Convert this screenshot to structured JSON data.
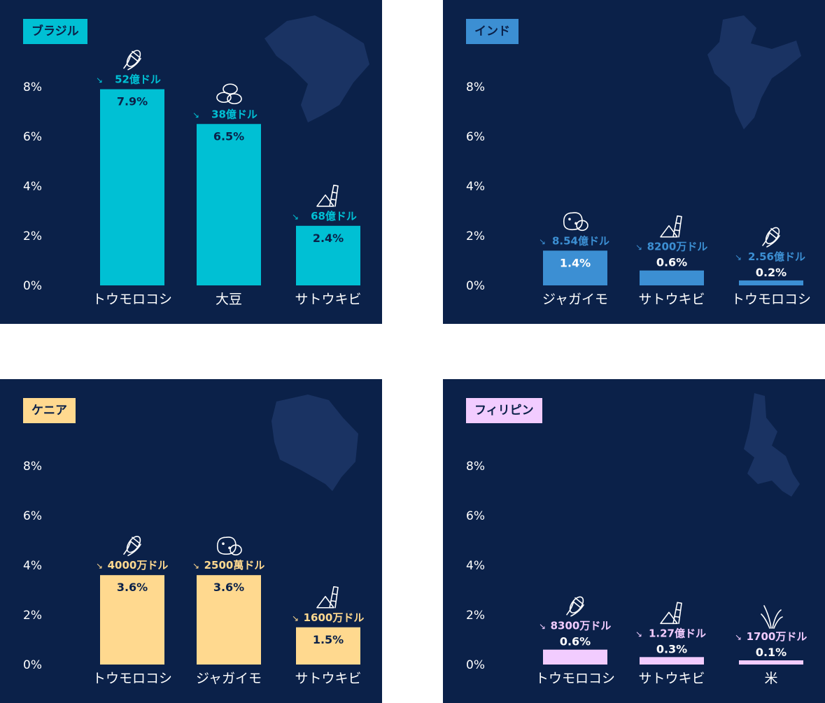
{
  "chart_data": [
    {
      "type": "bar",
      "title": "ブラジル",
      "color": "#00c0d4",
      "ylim": [
        0,
        9
      ],
      "yticks": [
        "0%",
        "2%",
        "4%",
        "6%",
        "8%"
      ],
      "categories": [
        "トウモロコシ",
        "大豆",
        "サトウキビ"
      ],
      "values": [
        7.9,
        6.5,
        2.4
      ],
      "value_labels": [
        "7.9%",
        "6.5%",
        "2.4%"
      ],
      "amounts": [
        "52億ドル",
        "38億ドル",
        "68億ドル"
      ],
      "icons": [
        "corn-icon",
        "bean-icon",
        "sugarcane-icon"
      ]
    },
    {
      "type": "bar",
      "title": "インド",
      "color": "#3c8fd3",
      "ylim": [
        0,
        9
      ],
      "yticks": [
        "0%",
        "2%",
        "4%",
        "6%",
        "8%"
      ],
      "categories": [
        "ジャガイモ",
        "サトウキビ",
        "トウモロコシ"
      ],
      "values": [
        1.4,
        0.6,
        0.2
      ],
      "value_labels": [
        "1.4%",
        "0.6%",
        "0.2%"
      ],
      "amounts": [
        "8.54億ドル",
        "8200万ドル",
        "2.56億ドル"
      ],
      "icons": [
        "potato-icon",
        "sugarcane-icon",
        "corn-icon"
      ]
    },
    {
      "type": "bar",
      "title": "ケニア",
      "color": "#ffd98f",
      "ylim": [
        0,
        9
      ],
      "yticks": [
        "0%",
        "2%",
        "4%",
        "6%",
        "8%"
      ],
      "categories": [
        "トウモロコシ",
        "ジャガイモ",
        "サトウキビ"
      ],
      "values": [
        3.6,
        3.6,
        1.5
      ],
      "value_labels": [
        "3.6%",
        "3.6%",
        "1.5%"
      ],
      "amounts": [
        "4000万ドル",
        "2500萬ドル",
        "1600万ドル"
      ],
      "icons": [
        "corn-icon",
        "potato-icon",
        "sugarcane-icon"
      ]
    },
    {
      "type": "bar",
      "title": "フィリピン",
      "color": "#f2ccff",
      "ylim": [
        0,
        9
      ],
      "yticks": [
        "0%",
        "2%",
        "4%",
        "6%",
        "8%"
      ],
      "categories": [
        "トウモロコシ",
        "サトウキビ",
        "米"
      ],
      "values": [
        0.6,
        0.3,
        0.1
      ],
      "value_labels": [
        "0.6%",
        "0.3%",
        "0.1%"
      ],
      "amounts": [
        "8300万ドル",
        "1.27億ドル",
        "1700万ドル"
      ],
      "icons": [
        "corn-icon",
        "sugarcane-icon",
        "rice-icon"
      ]
    }
  ]
}
